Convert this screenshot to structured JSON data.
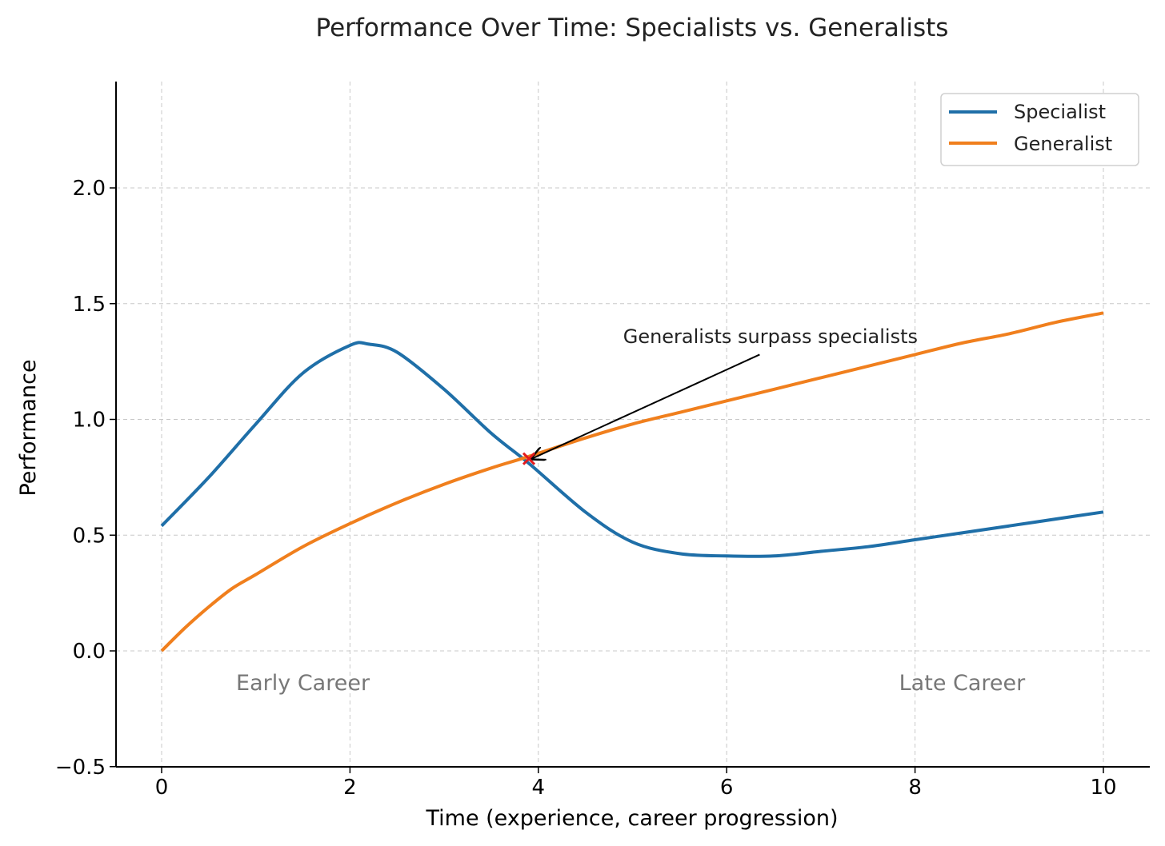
{
  "chart_data": {
    "type": "line",
    "title": "Performance Over Time: Specialists vs. Generalists",
    "xlabel": "Time (experience, career progression)",
    "ylabel": "Performance",
    "xlim": [
      -0.5,
      10.5
    ],
    "ylim": [
      -0.5,
      2.5
    ],
    "x_ticks": [
      0,
      2,
      4,
      6,
      8,
      10
    ],
    "x_tick_labels": [
      "0",
      "2",
      "4",
      "6",
      "8",
      "10"
    ],
    "y_ticks": [
      -0.5,
      0.0,
      0.5,
      1.0,
      1.5,
      2.0
    ],
    "y_tick_labels": [
      "−0.5",
      "0.0",
      "0.5",
      "1.0",
      "1.5",
      "2.0"
    ],
    "grid": true,
    "legend_position": "top-right",
    "series": [
      {
        "name": "Specialist",
        "color": "#1f6fa8",
        "x": [
          0,
          0.5,
          1.0,
          1.5,
          2.0,
          2.2,
          2.5,
          3.0,
          3.5,
          3.9,
          4.5,
          5.0,
          5.5,
          6.0,
          6.5,
          7.0,
          7.5,
          8.0,
          8.5,
          9.0,
          9.5,
          10.0
        ],
        "y": [
          0.54,
          0.75,
          0.98,
          1.2,
          1.32,
          1.325,
          1.29,
          1.13,
          0.94,
          0.81,
          0.6,
          0.47,
          0.42,
          0.41,
          0.41,
          0.43,
          0.45,
          0.48,
          0.51,
          0.54,
          0.57,
          0.6
        ]
      },
      {
        "name": "Generalist",
        "color": "#f07f1d",
        "x": [
          0,
          0.25,
          0.5,
          0.75,
          1.0,
          1.5,
          2.0,
          2.5,
          3.0,
          3.5,
          3.9,
          4.5,
          5.0,
          5.5,
          6.0,
          6.5,
          7.0,
          7.5,
          8.0,
          8.5,
          9.0,
          9.5,
          10.0
        ],
        "y": [
          0.0,
          0.1,
          0.19,
          0.27,
          0.33,
          0.45,
          0.55,
          0.64,
          0.72,
          0.79,
          0.84,
          0.92,
          0.98,
          1.03,
          1.08,
          1.13,
          1.18,
          1.23,
          1.28,
          1.33,
          1.37,
          1.42,
          1.46
        ]
      }
    ],
    "marker": {
      "x": 3.9,
      "y": 0.83,
      "color": "#e31a1c",
      "symbol": "x"
    },
    "annotations": [
      {
        "text": "Generalists surpass specialists",
        "text_x": 4.9,
        "text_y": 1.33,
        "arrow_from_x": 6.35,
        "arrow_from_y": 1.28,
        "arrow_to_x": 3.93,
        "arrow_to_y": 0.83
      },
      {
        "text": "Early Career",
        "x": 1.5,
        "y": -0.17
      },
      {
        "text": "Late Career",
        "x": 8.5,
        "y": -0.17
      }
    ]
  }
}
